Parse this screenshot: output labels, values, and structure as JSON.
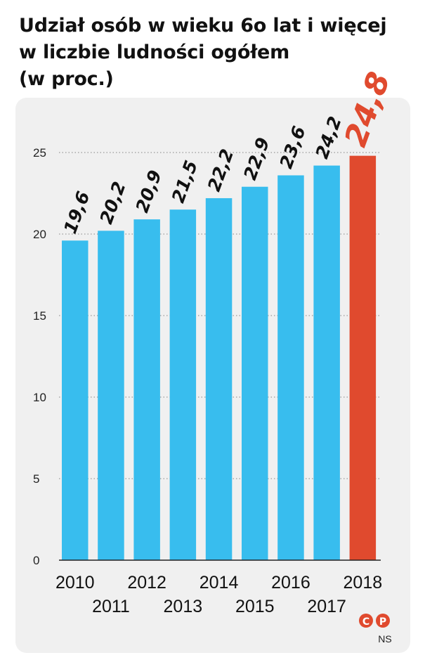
{
  "title_lines": [
    "Udział osób w wieku 6o lat i więcej",
    "w liczbie ludności ogółem",
    "(w proc.)"
  ],
  "colors": {
    "bar": "#38bdee",
    "highlight": "#e04a2e",
    "panel": "#f0f0f0",
    "grid": "#9a9a9a"
  },
  "chart_data": {
    "type": "bar",
    "categories": [
      "2010",
      "2011",
      "2012",
      "2013",
      "2014",
      "2015",
      "2016",
      "2017",
      "2018"
    ],
    "values": [
      19.6,
      20.2,
      20.9,
      21.5,
      22.2,
      22.9,
      23.6,
      24.2,
      24.8
    ],
    "value_labels": [
      "19,6",
      "20,2",
      "20,9",
      "21,5",
      "22,2",
      "22,9",
      "23,6",
      "24,2",
      "24,8"
    ],
    "highlight_index": 8,
    "ylim": [
      0,
      25
    ],
    "yticks": [
      0,
      5,
      10,
      15,
      20,
      25
    ],
    "ytick_labels": [
      "0",
      "5",
      "10",
      "15",
      "20",
      "25"
    ],
    "grid": "dotted horizontal",
    "xlabel": "",
    "ylabel": ""
  },
  "credit": {
    "logo_letters": [
      "C",
      "P"
    ],
    "author": "NS"
  }
}
